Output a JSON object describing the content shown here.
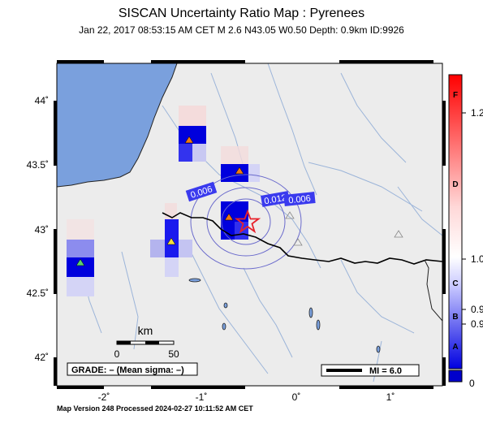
{
  "title": "SISCAN Uncertainty Ratio Map : Pyrenees",
  "subtitle": "Jan 22, 2017 08:53:15 AM CET   M 2.6   N43.05 W0.50   Depth: 0.9km   ID:9926",
  "footer": "Map Version 248 Processed 2024-02-27 10:11:52 AM CET",
  "axes": {
    "lon_ticks": [
      "-2˚",
      "-1˚",
      "0˚",
      "1˚"
    ],
    "lat_ticks": [
      "44˚",
      "43.5˚",
      "43˚",
      "42.5˚",
      "42˚"
    ]
  },
  "scale": {
    "unit": "km",
    "labels": [
      "0",
      "50"
    ]
  },
  "grade_label": "GRADE: – (Mean sigma: –)",
  "mi_label": "MI = 6.0",
  "contours": [
    "0.006",
    "0.012",
    "0.006"
  ],
  "colorbar": {
    "letters": [
      "F",
      "D",
      "C",
      "B",
      "A"
    ],
    "values": [
      "1.2",
      "1.0",
      "0.9",
      "0.9",
      "0"
    ],
    "colors": {
      "top": "#ff0000",
      "mid": "#ffffff",
      "bottom": "#0000e0"
    }
  },
  "colors": {
    "sea": "#7aa0dd",
    "land": "#ececec",
    "border": "#000000",
    "rivers": "#9bb4d9",
    "epicenter": "#e8212a"
  }
}
